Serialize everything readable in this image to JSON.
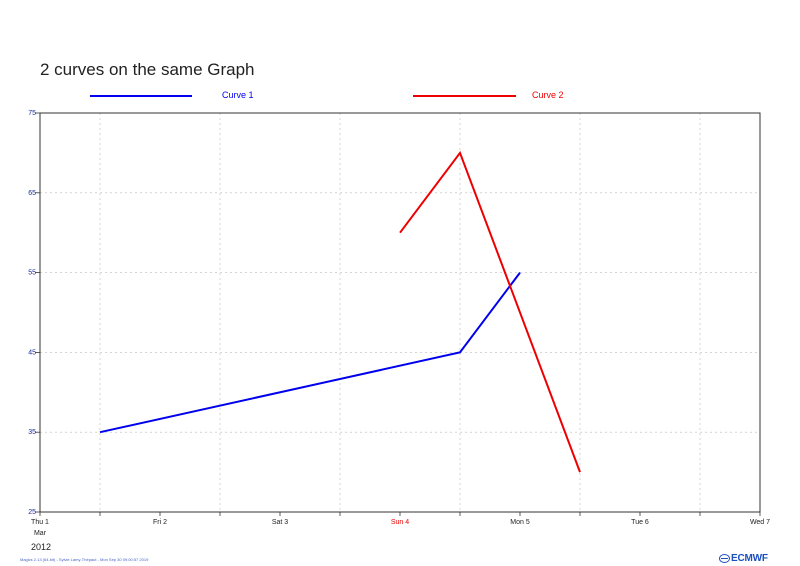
{
  "chart_data": {
    "type": "line",
    "title": "2 curves on the same Graph",
    "x_start": "2012-03-01",
    "x_end": "2012-03-07",
    "ylim": [
      25,
      75
    ],
    "yticks": [
      25,
      35,
      45,
      55,
      65,
      75
    ],
    "x_tick_labels": [
      "Thu 1",
      "Fri 2",
      "Sat 3",
      "Sun 4",
      "Mon 5",
      "Tue 6",
      "Wed 7"
    ],
    "x_month_label": "Mar",
    "x_year_label": "2012",
    "highlight_tick": "Sun 4",
    "grid": true,
    "legend_position": "top",
    "series": [
      {
        "name": "Curve 1",
        "color": "#0000ee",
        "x": [
          "2012-03-01 12:00",
          "2012-03-04 12:00",
          "2012-03-05 00:00"
        ],
        "y": [
          35,
          45,
          55
        ]
      },
      {
        "name": "Curve 2",
        "color": "#ee0000",
        "x": [
          "2012-03-04 00:00",
          "2012-03-04 12:00",
          "2012-03-05 12:00"
        ],
        "y": [
          60,
          70,
          30
        ]
      }
    ]
  },
  "footer_text": "Magics 2.13 (64-bit) - Sylvie Lamy-Thépaut - Mon Sep 30 09:00:57 2019",
  "logo_text": "ECMWF"
}
